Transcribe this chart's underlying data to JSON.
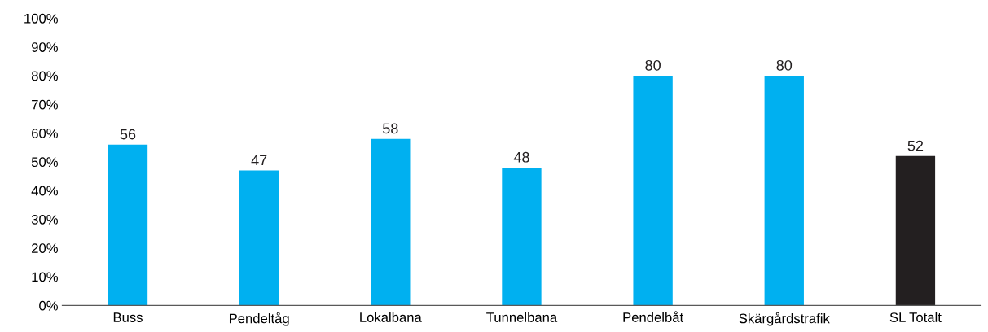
{
  "chart_data": {
    "type": "bar",
    "categories": [
      "Buss",
      "Pendeltåg",
      "Lokalbana",
      "Tunnelbana",
      "Pendelbåt",
      "Skärgårdstrafik",
      "SL Totalt"
    ],
    "values": [
      56,
      47,
      58,
      48,
      80,
      80,
      52
    ],
    "colors": [
      "#00b0f0",
      "#00b0f0",
      "#00b0f0",
      "#00b0f0",
      "#00b0f0",
      "#00b0f0",
      "#231f20"
    ],
    "ylim": [
      0,
      100
    ],
    "yticks": [
      {
        "value": 0,
        "label": "0%"
      },
      {
        "value": 10,
        "label": "10%"
      },
      {
        "value": 20,
        "label": "20%"
      },
      {
        "value": 30,
        "label": "30%"
      },
      {
        "value": 40,
        "label": "40%"
      },
      {
        "value": 50,
        "label": "50%"
      },
      {
        "value": 60,
        "label": "60%"
      },
      {
        "value": 70,
        "label": "70%"
      },
      {
        "value": 80,
        "label": "80%"
      },
      {
        "value": 90,
        "label": "90%"
      },
      {
        "value": 100,
        "label": "100%"
      }
    ],
    "data_labels": true,
    "grid": false,
    "legend": false
  }
}
